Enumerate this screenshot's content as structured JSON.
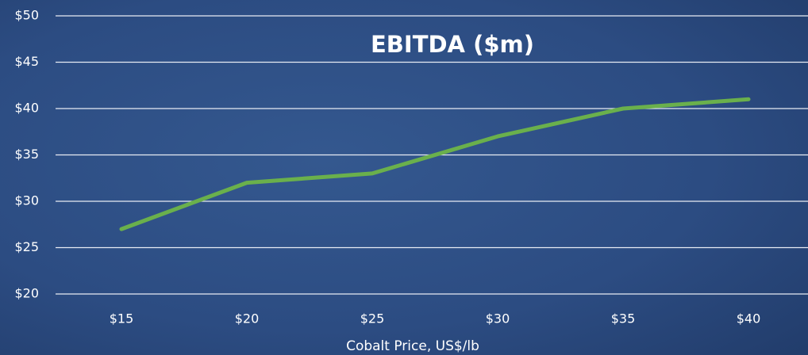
{
  "chart_data": {
    "type": "line",
    "title": "EBITDA ($m)",
    "x_label": "Cobalt Price, US$/lb",
    "categories": [
      "$15",
      "$20",
      "$25",
      "$30",
      "$35",
      "$40"
    ],
    "values": [
      27,
      32,
      33,
      37,
      40,
      41
    ],
    "color": "#6ab04c",
    "ylim": [
      20,
      50
    ],
    "yticks": [
      {
        "value": 20,
        "label": "$20"
      },
      {
        "value": 25,
        "label": "$25"
      },
      {
        "value": 30,
        "label": "$30"
      },
      {
        "value": 35,
        "label": "$35"
      },
      {
        "value": 40,
        "label": "$40"
      },
      {
        "value": 45,
        "label": "$45"
      },
      {
        "value": 50,
        "label": "$50"
      }
    ],
    "grid": true
  }
}
